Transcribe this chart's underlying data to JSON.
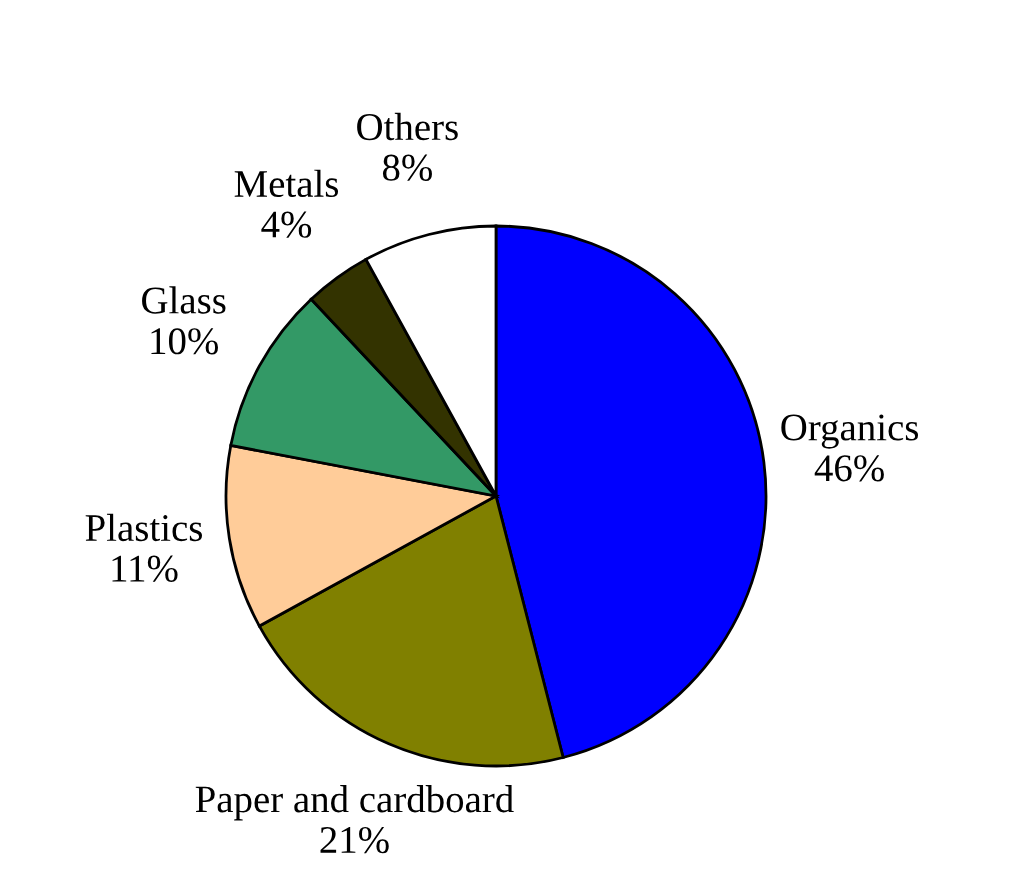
{
  "chart_data": {
    "type": "pie",
    "categories": [
      "Organics",
      "Paper and cardboard",
      "Plastics",
      "Glass",
      "Metals",
      "Others"
    ],
    "values": [
      46,
      21,
      11,
      10,
      4,
      8
    ],
    "value_labels": [
      "46%",
      "21%",
      "11%",
      "10%",
      "4%",
      "8%"
    ],
    "colors": [
      "#0000ff",
      "#808000",
      "#ffcc99",
      "#339966",
      "#333300",
      "#ffffff"
    ]
  }
}
